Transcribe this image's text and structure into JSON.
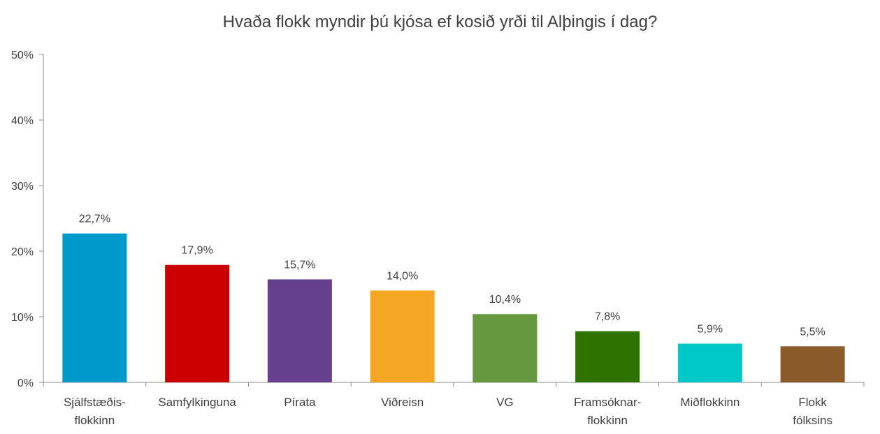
{
  "chart_data": {
    "type": "bar",
    "title": "Hvaða flokk myndir þú kjósa ef kosið yrði til Alþingis í dag?",
    "xlabel": "",
    "ylabel": "",
    "ylim": [
      0,
      50
    ],
    "yticks": [
      0,
      10,
      20,
      30,
      40,
      50
    ],
    "ytick_labels": [
      "0%",
      "10%",
      "20%",
      "30%",
      "40%",
      "50%"
    ],
    "grid": false,
    "categories": [
      [
        "Sjálfstæðis-",
        "flokkinn"
      ],
      [
        "Samfylkinguna"
      ],
      [
        "Pírata"
      ],
      [
        "Viðreisn"
      ],
      [
        "VG"
      ],
      [
        "Framsóknar-",
        "flokkinn"
      ],
      [
        "Miðflokkinn"
      ],
      [
        "Flokk",
        "fólksins"
      ]
    ],
    "values": [
      22.7,
      17.9,
      15.7,
      14.0,
      10.4,
      7.8,
      5.9,
      5.5
    ],
    "value_labels": [
      "22,7%",
      "17,9%",
      "15,7%",
      "14,0%",
      "10,4%",
      "7,8%",
      "5,9%",
      "5,5%"
    ],
    "colors": [
      "#0099CC",
      "#CC0000",
      "#663F8F",
      "#F5A623",
      "#66993F",
      "#2E7300",
      "#00C8C8",
      "#8B5A2B"
    ]
  }
}
